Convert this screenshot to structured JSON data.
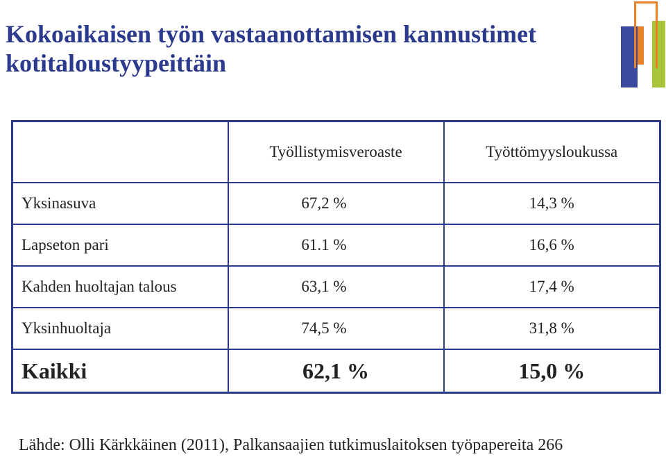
{
  "slide": {
    "title_line1": "Kokoaikaisen työn vastaanottamisen kannustimet",
    "title_line2": "kotitaloustyypeittäin",
    "accent_color": "#2b3a8c",
    "logo_colors": [
      "#3b4a9e",
      "#e8822a",
      "#a8c43a"
    ]
  },
  "table": {
    "header": [
      "",
      "Työllistymisveroaste",
      "Työttömyysloukussa"
    ],
    "rows": [
      {
        "label": "Yksinasuva",
        "tyollistymisveroaste": "67,2 %",
        "tyottomyysloukussa": "14,3 %"
      },
      {
        "label": "Lapseton pari",
        "tyollistymisveroaste": "61.1 %",
        "tyottomyysloukussa": "16,6 %"
      },
      {
        "label": "Kahden huoltajan talous",
        "tyollistymisveroaste": "63,1 %",
        "tyottomyysloukussa": "17,4 %"
      },
      {
        "label": "Yksinhuoltaja",
        "tyollistymisveroaste": "74,5 %",
        "tyottomyysloukussa": "31,8 %"
      }
    ],
    "total": {
      "label": "Kaikki",
      "tyollistymisveroaste": "62,1 %",
      "tyottomyysloukussa": "15,0 %"
    }
  },
  "source": "Lähde: Olli Kärkkäinen (2011), Palkansaajien tutkimuslaitoksen työpapereita 266"
}
